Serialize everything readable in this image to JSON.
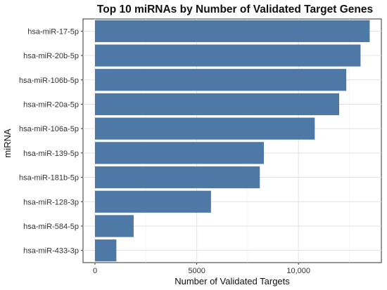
{
  "chart_data": {
    "type": "bar",
    "orientation": "horizontal",
    "title": "Top 10 miRNAs by Number of Validated Target Genes",
    "xlabel": "Number of Validated Targets",
    "ylabel": "miRNA",
    "categories": [
      "hsa-miR-17-5p",
      "hsa-miR-20b-5p",
      "hsa-miR-106b-5p",
      "hsa-miR-20a-5p",
      "hsa-miR-106a-5p",
      "hsa-miR-139-5p",
      "hsa-miR-181b-5p",
      "hsa-miR-128-3p",
      "hsa-miR-584-5p",
      "hsa-miR-433-3p"
    ],
    "values": [
      13500,
      13050,
      12350,
      12000,
      10800,
      8300,
      8100,
      5700,
      1900,
      1050
    ],
    "xlim": [
      0,
      14000
    ],
    "xticks": [
      0,
      5000,
      10000
    ],
    "xtick_labels": [
      "0",
      "5000",
      "10,000"
    ],
    "bar_color": "#4E79A7",
    "grid": true,
    "legend": "none"
  }
}
